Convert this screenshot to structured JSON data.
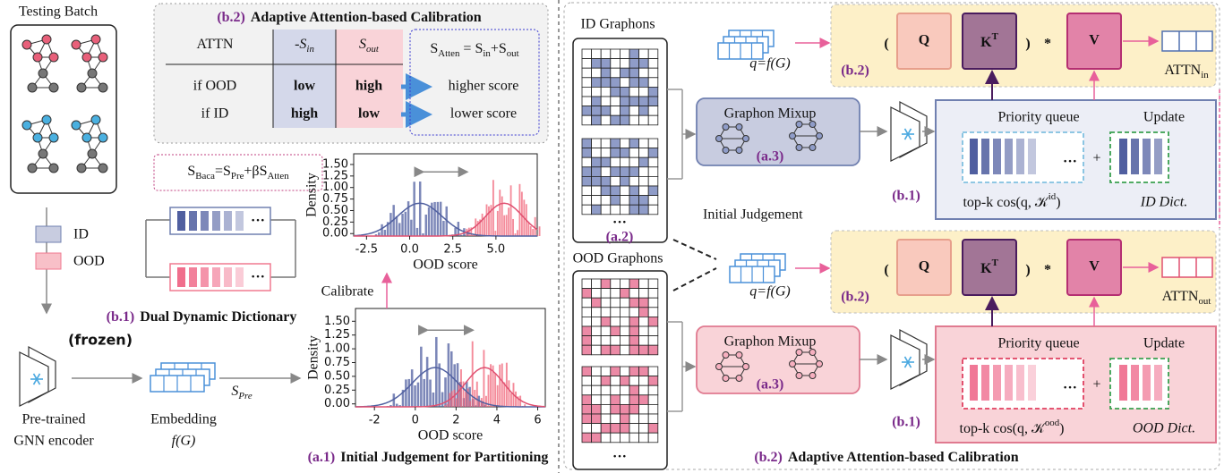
{
  "left_panel": {
    "testing_batch": "Testing Batch",
    "calibration": {
      "tag": "(b.2)",
      "title": "Adaptive Attention-based Calibration",
      "table": {
        "header": [
          [
            "ATTN"
          ],
          [
            "-S",
            "in"
          ],
          [
            "S",
            "out"
          ]
        ],
        "rows": [
          {
            "label": "if OOD",
            "neg_s_in": "low",
            "s_out": "high",
            "result": "higher score"
          },
          {
            "label": "if ID",
            "neg_s_in": "high",
            "s_out": "low",
            "result": "lower score"
          }
        ]
      },
      "formula": [
        "S",
        "Atten",
        " = S",
        "in",
        "+S",
        "out"
      ]
    },
    "baca_formula": [
      "S",
      "Baca",
      "=S",
      "Pre",
      "+βS",
      "Atten"
    ],
    "legend": [
      "ID",
      "OOD"
    ],
    "dictionary_tag": "(b.1)",
    "dictionary_title": "Dual Dynamic Dictionary",
    "ellipsis": "···",
    "frozen": "(frozen)",
    "encoder_label": [
      "Pre-trained",
      "GNN encoder"
    ],
    "embedding_label": [
      "Embedding",
      "f(G)"
    ],
    "s_pre": [
      "S",
      "Pre"
    ],
    "calibrate": "Calibrate",
    "histogram_calibrated": {
      "y_label": "Density",
      "x_label": "OOD score",
      "xticks": [
        "-2.5",
        "0.0",
        "2.5",
        "5.0"
      ],
      "yticks": [
        "0.00",
        "0.25",
        "0.50",
        "0.75",
        "1.00",
        "1.25",
        "1.50"
      ]
    },
    "histogram_initial": {
      "y_label": "Density",
      "x_label": "OOD score",
      "xticks": [
        "-2",
        "0",
        "2",
        "4",
        "6"
      ],
      "yticks": [
        "0.00",
        "0.25",
        "0.50",
        "0.75",
        "1.00",
        "1.25",
        "1.50"
      ]
    },
    "partition_tag": "(a.1)",
    "partition_title": "Initial Judgement for Partitioning"
  },
  "right_panel": {
    "id_graphons": "ID Graphons",
    "ood_graphons": "OOD Graphons",
    "graphon_tag": "(a.2)",
    "ellipsis": "···",
    "mixup_id": {
      "title": "Graphon Mixup",
      "tag": "(a.3)"
    },
    "mixup_ood": {
      "title": "Graphon Mixup",
      "tag": "(a.3)"
    },
    "initial_judgement": "Initial Judgement",
    "query_id": "q=f(G)",
    "query_ood": "q=f(G)",
    "attention_in": {
      "tag": "(b.2)",
      "open": "(",
      "q": "Q",
      "k": [
        "K",
        "T"
      ],
      "close": ")",
      "times": "*",
      "v": "V",
      "output": [
        "ATTN",
        "in"
      ]
    },
    "attention_out": {
      "tag": "(b.2)",
      "open": "(",
      "q": "Q",
      "k": [
        "K",
        "T"
      ],
      "close": ")",
      "times": "*",
      "v": "V",
      "output": [
        "ATTN",
        "out"
      ]
    },
    "id_dict": {
      "tag": "(b.1)",
      "queue": "Priority queue",
      "update": "Update",
      "ellipsis": "···",
      "plus": "+",
      "topk": [
        "top-k cos(q, 𝒦",
        "id",
        ")"
      ],
      "dict": "ID Dict."
    },
    "ood_dict": {
      "tag": "(b.1)",
      "queue": "Priority queue",
      "update": "Update",
      "ellipsis": "···",
      "plus": "+",
      "topk": [
        "top-k cos(q, 𝒦",
        "ood",
        ")"
      ],
      "dict": "OOD Dict."
    },
    "footer_tag": "(b.2)",
    "footer_title": "Adaptive Attention-based Calibration"
  }
}
